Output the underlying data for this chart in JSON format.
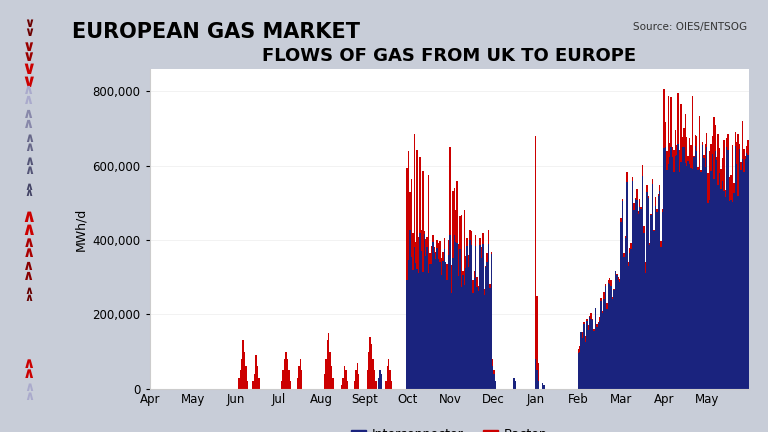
{
  "title": "FLOWS OF GAS FROM UK TO EUROPE",
  "header": "EUROPEAN GAS MARKET",
  "source": "Source: OIES/ENTSOG",
  "ylabel": "MWh/d",
  "interconnector_color": "#1a237e",
  "bacton_color": "#cc0000",
  "sidebar_color": "#1a2545",
  "ylim": [
    0,
    860000
  ],
  "yticks": [
    0,
    200000,
    400000,
    600000,
    800000
  ],
  "months": [
    "Apr",
    "May",
    "Jun",
    "Jul",
    "Aug",
    "Sept",
    "Oct",
    "Nov",
    "Dec",
    "Jan",
    "Feb",
    "Mar",
    "Apr",
    "May"
  ],
  "n_months": 14,
  "days_per_month": 30
}
